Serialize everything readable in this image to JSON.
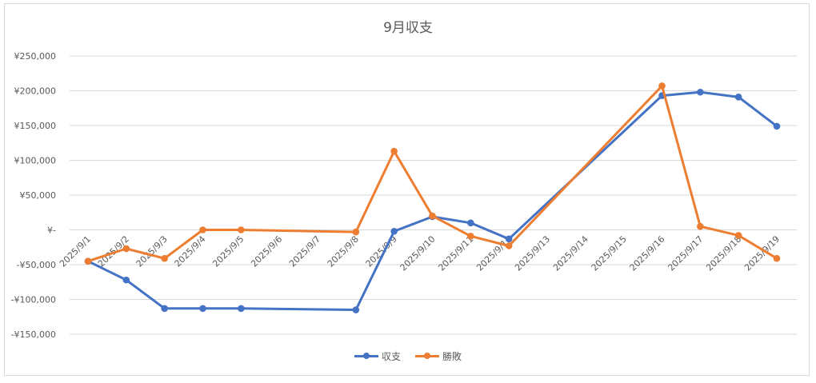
{
  "chart_data": {
    "type": "line",
    "title": "9月収支",
    "categories": [
      "2025/9/1",
      "2025/9/2",
      "2025/9/3",
      "2025/9/4",
      "2025/9/5",
      "2025/9/6",
      "2025/9/7",
      "2025/9/8",
      "2025/9/9",
      "2025/9/10",
      "2025/9/11",
      "2025/9/12",
      "2025/9/13",
      "2025/9/14",
      "2025/9/15",
      "2025/9/16",
      "2025/9/17",
      "2025/9/18",
      "2025/9/19"
    ],
    "ylim": [
      -150000,
      250000
    ],
    "yticks": [
      250000,
      200000,
      150000,
      100000,
      50000,
      0,
      -50000,
      -100000,
      -150000
    ],
    "ytick_labels": [
      "¥250,000",
      "¥200,000",
      "¥150,000",
      "¥100,000",
      "¥50,000",
      "¥-",
      "-¥50,000",
      "-¥100,000",
      "-¥150,000"
    ],
    "series": [
      {
        "name": "収支",
        "color": "#4472c4",
        "values": [
          -45000,
          -72000,
          -113000,
          -113000,
          -113000,
          null,
          null,
          -115000,
          -2000,
          19000,
          10000,
          -13000,
          null,
          null,
          null,
          193000,
          198000,
          191000,
          149000
        ]
      },
      {
        "name": "勝敗",
        "color": "#ed7d31",
        "values": [
          -45000,
          -27000,
          -41000,
          0,
          0,
          null,
          null,
          -3000,
          113000,
          20000,
          -9000,
          -23000,
          null,
          null,
          null,
          207000,
          5000,
          -8000,
          -41000
        ]
      }
    ],
    "grid": true,
    "legend": "bottom"
  }
}
